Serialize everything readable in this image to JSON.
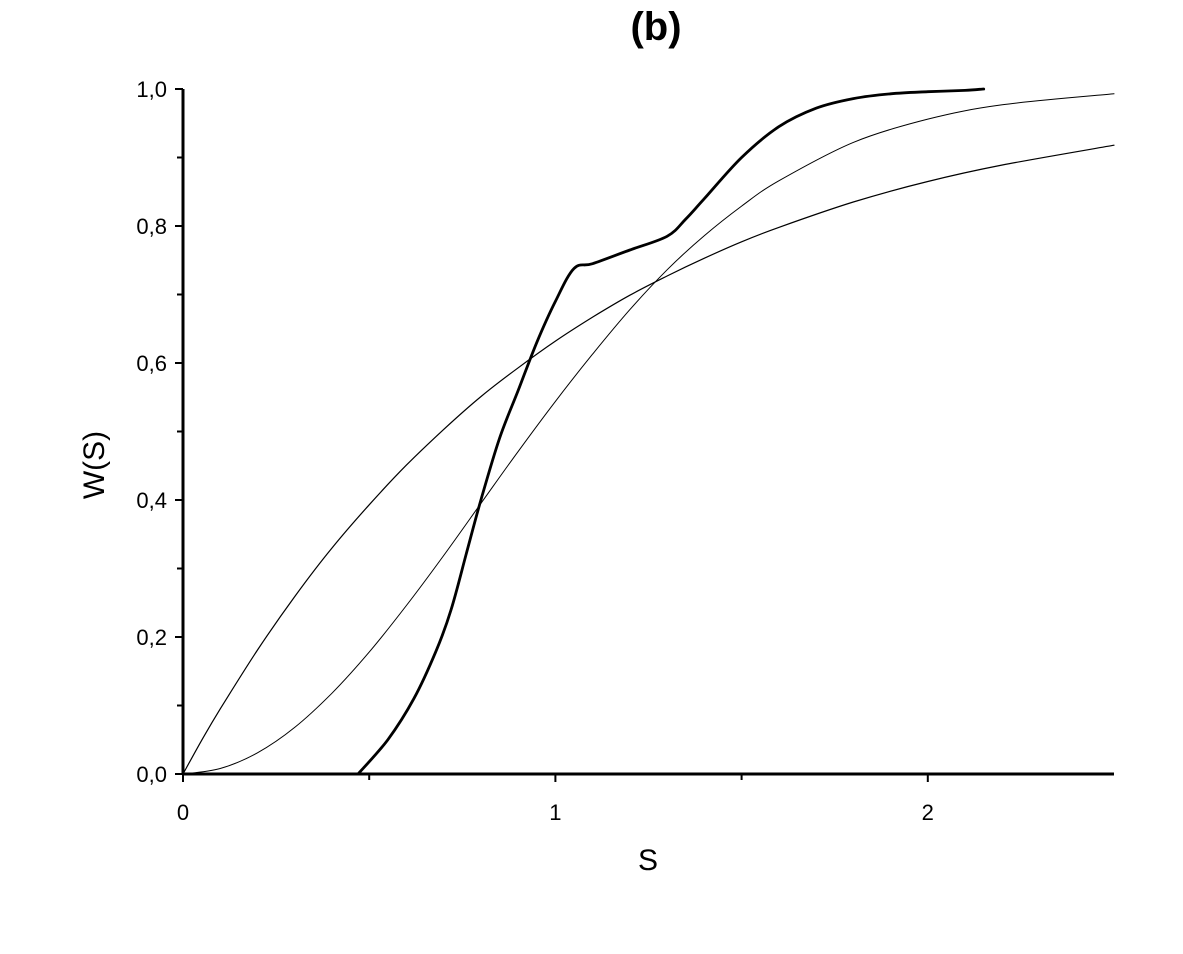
{
  "chart_data": {
    "type": "line",
    "title": "(b)",
    "xlabel": "S",
    "ylabel": "W(S)",
    "xlim": [
      0,
      2.5
    ],
    "ylim": [
      0,
      1
    ],
    "x_ticks": [
      {
        "value": 0,
        "label": "0"
      },
      {
        "value": 1,
        "label": "1"
      },
      {
        "value": 2,
        "label": "2"
      }
    ],
    "x_minor_ticks": [
      0.5,
      1.5
    ],
    "y_ticks": [
      {
        "value": 0,
        "label": "0,0"
      },
      {
        "value": 0.2,
        "label": "0,2"
      },
      {
        "value": 0.4,
        "label": "0,4"
      },
      {
        "value": 0.6,
        "label": "0,6"
      },
      {
        "value": 0.8,
        "label": "0,8"
      },
      {
        "value": 1.0,
        "label": "1,0"
      }
    ],
    "y_minor_ticks": [
      0.1,
      0.3,
      0.5,
      0.7,
      0.9
    ],
    "grid": false,
    "legend": "none",
    "series": [
      {
        "color": "#000000",
        "line_width": 1.2,
        "x": [
          0,
          0.05,
          0.1,
          0.2,
          0.3,
          0.4,
          0.5,
          0.6,
          0.7,
          0.8,
          0.9,
          1.0,
          1.1,
          1.2,
          1.3,
          1.4,
          1.5,
          1.6,
          1.8,
          2.0,
          2.2,
          2.5
        ],
        "y": [
          0,
          0.049,
          0.095,
          0.181,
          0.259,
          0.33,
          0.393,
          0.451,
          0.503,
          0.551,
          0.593,
          0.632,
          0.667,
          0.699,
          0.727,
          0.753,
          0.777,
          0.798,
          0.835,
          0.865,
          0.889,
          0.918
        ]
      },
      {
        "color": "#000000",
        "line_width": 1.0,
        "x": [
          0,
          0.1,
          0.2,
          0.3,
          0.4,
          0.5,
          0.6,
          0.7,
          0.8,
          0.9,
          1.0,
          1.1,
          1.2,
          1.3,
          1.4,
          1.5,
          1.6,
          1.8,
          2.0,
          2.2,
          2.5
        ],
        "y": [
          0,
          0.008,
          0.031,
          0.068,
          0.118,
          0.178,
          0.246,
          0.319,
          0.395,
          0.471,
          0.544,
          0.613,
          0.678,
          0.736,
          0.786,
          0.829,
          0.866,
          0.922,
          0.956,
          0.977,
          0.993
        ]
      },
      {
        "color": "#000000",
        "line_width": 2.8,
        "x": [
          0.47,
          0.55,
          0.62,
          0.68,
          0.72,
          0.76,
          0.8,
          0.85,
          0.9,
          0.95,
          1.0,
          1.05,
          1.1,
          1.2,
          1.3,
          1.35,
          1.4,
          1.5,
          1.6,
          1.7,
          1.8,
          1.9,
          2.0,
          2.1,
          2.15
        ],
        "y": [
          0,
          0.05,
          0.11,
          0.18,
          0.24,
          0.32,
          0.4,
          0.49,
          0.56,
          0.63,
          0.69,
          0.738,
          0.745,
          0.765,
          0.785,
          0.81,
          0.84,
          0.9,
          0.945,
          0.972,
          0.986,
          0.993,
          0.996,
          0.998,
          1.0
        ]
      }
    ]
  }
}
